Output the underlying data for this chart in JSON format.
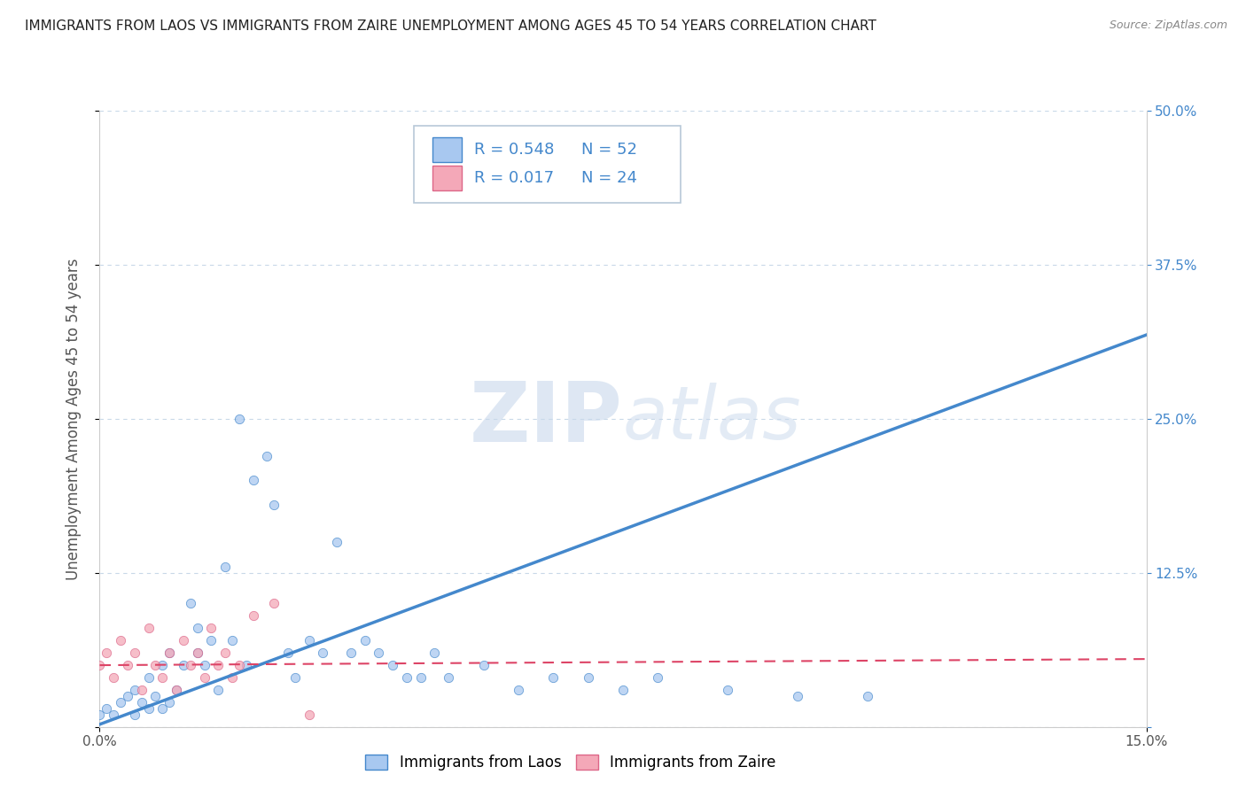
{
  "title": "IMMIGRANTS FROM LAOS VS IMMIGRANTS FROM ZAIRE UNEMPLOYMENT AMONG AGES 45 TO 54 YEARS CORRELATION CHART",
  "source": "Source: ZipAtlas.com",
  "ylabel_label": "Unemployment Among Ages 45 to 54 years",
  "xlim": [
    0.0,
    0.15
  ],
  "ylim": [
    0.0,
    0.5
  ],
  "yticks": [
    0.0,
    0.125,
    0.25,
    0.375,
    0.5
  ],
  "ytick_labels_right": [
    "",
    "12.5%",
    "25.0%",
    "37.5%",
    "50.0%"
  ],
  "laos_color": "#a8c8f0",
  "zaire_color": "#f4a8b8",
  "laos_line_color": "#4488cc",
  "zaire_line_color": "#dd4466",
  "background_color": "#ffffff",
  "grid_color": "#c8d8e8",
  "legend_r_laos": "0.548",
  "legend_n_laos": "52",
  "legend_r_zaire": "0.017",
  "legend_n_zaire": "24",
  "laos_scatter_x": [
    0.0,
    0.001,
    0.002,
    0.003,
    0.004,
    0.005,
    0.005,
    0.006,
    0.007,
    0.007,
    0.008,
    0.009,
    0.009,
    0.01,
    0.01,
    0.011,
    0.012,
    0.013,
    0.014,
    0.014,
    0.015,
    0.016,
    0.017,
    0.018,
    0.019,
    0.02,
    0.021,
    0.022,
    0.024,
    0.025,
    0.027,
    0.028,
    0.03,
    0.032,
    0.034,
    0.036,
    0.038,
    0.04,
    0.042,
    0.044,
    0.046,
    0.048,
    0.05,
    0.055,
    0.06,
    0.065,
    0.07,
    0.075,
    0.08,
    0.09,
    0.1,
    0.11
  ],
  "laos_scatter_y": [
    0.01,
    0.015,
    0.01,
    0.02,
    0.025,
    0.01,
    0.03,
    0.02,
    0.015,
    0.04,
    0.025,
    0.015,
    0.05,
    0.02,
    0.06,
    0.03,
    0.05,
    0.1,
    0.06,
    0.08,
    0.05,
    0.07,
    0.03,
    0.13,
    0.07,
    0.25,
    0.05,
    0.2,
    0.22,
    0.18,
    0.06,
    0.04,
    0.07,
    0.06,
    0.15,
    0.06,
    0.07,
    0.06,
    0.05,
    0.04,
    0.04,
    0.06,
    0.04,
    0.05,
    0.03,
    0.04,
    0.04,
    0.03,
    0.04,
    0.03,
    0.025,
    0.025
  ],
  "zaire_scatter_x": [
    0.0,
    0.001,
    0.002,
    0.003,
    0.004,
    0.005,
    0.006,
    0.007,
    0.008,
    0.009,
    0.01,
    0.011,
    0.012,
    0.013,
    0.014,
    0.015,
    0.016,
    0.017,
    0.018,
    0.019,
    0.02,
    0.022,
    0.025,
    0.03
  ],
  "zaire_scatter_y": [
    0.05,
    0.06,
    0.04,
    0.07,
    0.05,
    0.06,
    0.03,
    0.08,
    0.05,
    0.04,
    0.06,
    0.03,
    0.07,
    0.05,
    0.06,
    0.04,
    0.08,
    0.05,
    0.06,
    0.04,
    0.05,
    0.09,
    0.1,
    0.01
  ],
  "laos_trendline_x": [
    0.0,
    0.15
  ],
  "laos_trendline_y": [
    0.002,
    0.318
  ],
  "zaire_trendline_x": [
    0.0,
    0.15
  ],
  "zaire_trendline_y": [
    0.05,
    0.055
  ]
}
